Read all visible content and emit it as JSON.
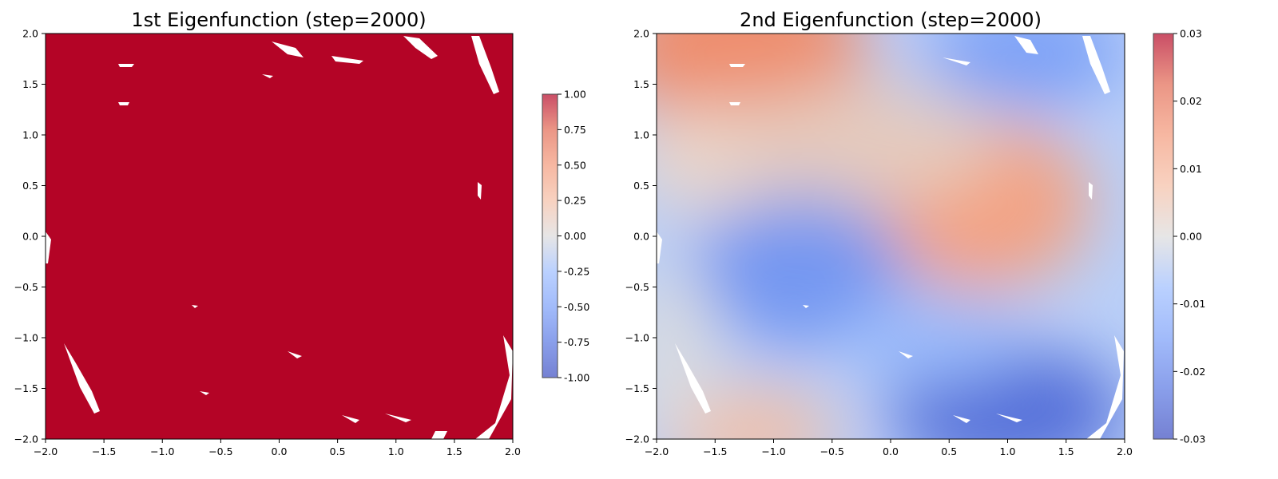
{
  "chart_data": [
    {
      "type": "heatmap",
      "title": "1st Eigenfunction (step=2000)",
      "xlabel": "",
      "ylabel": "",
      "xlim": [
        -2.0,
        2.0
      ],
      "ylim": [
        -2.0,
        2.0
      ],
      "x_ticks": [
        "−2.0",
        "−1.5",
        "−1.0",
        "−0.5",
        "0.0",
        "0.5",
        "1.0",
        "1.5",
        "2.0"
      ],
      "y_ticks": [
        "−2.0",
        "−1.5",
        "−1.0",
        "−0.5",
        "0.0",
        "0.5",
        "1.0",
        "1.5",
        "2.0"
      ],
      "colormap": "coolwarm",
      "field_description": "constant value 1.0 over the sampled domain",
      "field_value": 1.0,
      "fill_color": "#b40426",
      "colorbar": {
        "range": [
          -1.0,
          1.0
        ],
        "ticks": [
          "1.00",
          "0.75",
          "0.50",
          "0.25",
          "0.00",
          "-0.25",
          "-0.50",
          "-0.75",
          "-1.00"
        ]
      },
      "grid": false
    },
    {
      "type": "heatmap",
      "title": "2nd Eigenfunction (step=2000)",
      "xlabel": "",
      "ylabel": "",
      "xlim": [
        -2.0,
        2.0
      ],
      "ylim": [
        -2.0,
        2.0
      ],
      "x_ticks": [
        "−2.0",
        "−1.5",
        "−1.0",
        "−0.5",
        "0.0",
        "0.5",
        "1.0",
        "1.5",
        "2.0"
      ],
      "y_ticks": [
        "−2.0",
        "−1.5",
        "−1.0",
        "−0.5",
        "0.0",
        "0.5",
        "1.0",
        "1.5",
        "2.0"
      ],
      "colormap": "coolwarm",
      "extrema": [
        {
          "x": -0.8,
          "y": 1.9,
          "value": 0.025
        },
        {
          "x": 0.7,
          "y": 0.35,
          "value": 0.02
        },
        {
          "x": -0.8,
          "y": -0.4,
          "value": -0.022
        },
        {
          "x": 1.0,
          "y": -1.8,
          "value": -0.027
        },
        {
          "x": 1.3,
          "y": 1.9,
          "value": -0.02
        },
        {
          "x": -1.0,
          "y": -1.9,
          "value": 0.014
        }
      ],
      "colorbar": {
        "range": [
          -0.03,
          0.03
        ],
        "ticks": [
          "0.03",
          "0.02",
          "0.01",
          "0.00",
          "-0.01",
          "-0.02",
          "-0.03"
        ]
      },
      "grid": false
    }
  ]
}
